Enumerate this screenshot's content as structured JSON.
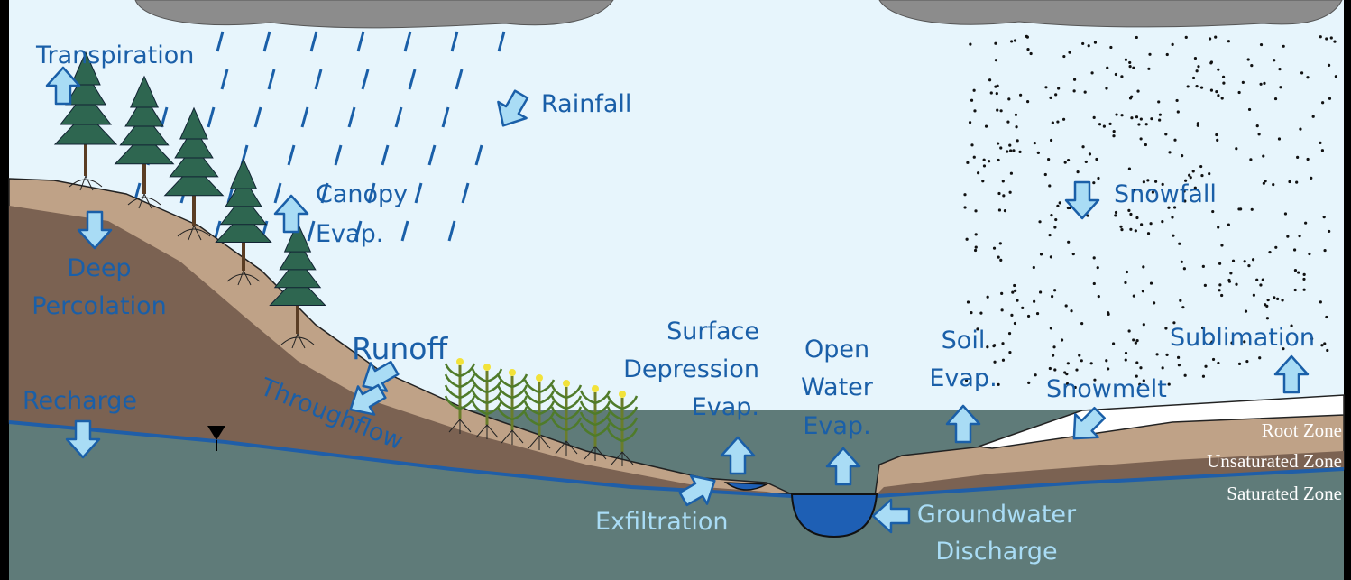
{
  "labels": {
    "transpiration": "Transpiration",
    "rainfall": "Rainfall",
    "canopy_evap": [
      "Canopy",
      "Evap."
    ],
    "deep_percolation": [
      "Deep",
      "Percolation"
    ],
    "runoff": "Runoff",
    "recharge": "Recharge",
    "throughflow": "Throughflow",
    "surface_depression_evap": [
      "Surface",
      "Depression",
      "Evap."
    ],
    "open_water_evap": [
      "Open",
      "Water",
      "Evap."
    ],
    "soil_evap": [
      "Soil",
      "Evap."
    ],
    "sublimation": "Sublimation",
    "snowfall": "Snowfall",
    "snowmelt": "Snowmelt",
    "exfiltration": "Exfiltration",
    "groundwater_discharge": [
      "Groundwater",
      "Discharge"
    ]
  },
  "zones": [
    "Root Zone",
    "Unsaturated Zone",
    "Saturated Zone"
  ]
}
